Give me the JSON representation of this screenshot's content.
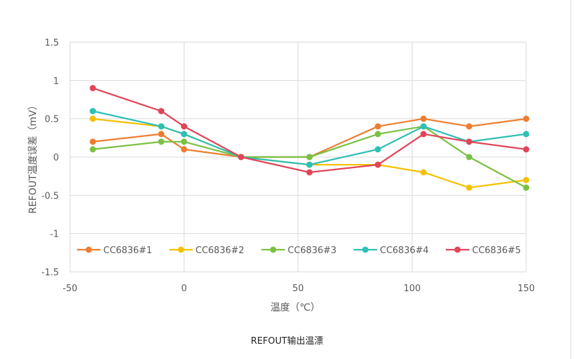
{
  "chart_data": {
    "type": "line",
    "title": "",
    "xlabel": "温度（℃）",
    "ylabel": "REFOUT温度误差（mV）",
    "xlim": [
      -50,
      150
    ],
    "ylim": [
      -1.5,
      1.5
    ],
    "x_ticks": [
      -50,
      0,
      50,
      100,
      150
    ],
    "y_ticks": [
      -1.5,
      -1,
      -0.5,
      0,
      0.5,
      1,
      1.5
    ],
    "x_tick_labels": [
      "-50",
      "0",
      "50",
      "100",
      "150"
    ],
    "y_tick_labels": [
      "-1.5",
      "-1",
      "-0.5",
      "0",
      "0.5",
      "1",
      "1.5"
    ],
    "grid": "vertical",
    "legend_position": "bottom-inside",
    "x": [
      -40,
      -10,
      0,
      25,
      55,
      85,
      105,
      125,
      150
    ],
    "series": [
      {
        "name": "CC6836#1",
        "color": "#ed7d31",
        "values": [
          0.2,
          0.3,
          0.1,
          0,
          0,
          0.4,
          0.5,
          0.4,
          0.5
        ]
      },
      {
        "name": "CC6836#2",
        "color": "#f5c000",
        "values": [
          0.5,
          0.4,
          0.3,
          0,
          -0.1,
          -0.1,
          -0.2,
          -0.4,
          -0.3
        ]
      },
      {
        "name": "CC6836#3",
        "color": "#7ac143",
        "values": [
          0.1,
          0.2,
          0.2,
          0,
          0,
          0.3,
          0.4,
          0,
          -0.4
        ]
      },
      {
        "name": "CC6836#4",
        "color": "#2ebfb5",
        "values": [
          0.6,
          0.4,
          0.3,
          0,
          -0.1,
          0.1,
          0.4,
          0.2,
          0.3
        ]
      },
      {
        "name": "CC6836#5",
        "color": "#e04558",
        "values": [
          0.9,
          0.6,
          0.4,
          0,
          -0.2,
          -0.1,
          0.3,
          0.2,
          0.1
        ]
      }
    ]
  },
  "caption": "REFOUT输出温漂"
}
